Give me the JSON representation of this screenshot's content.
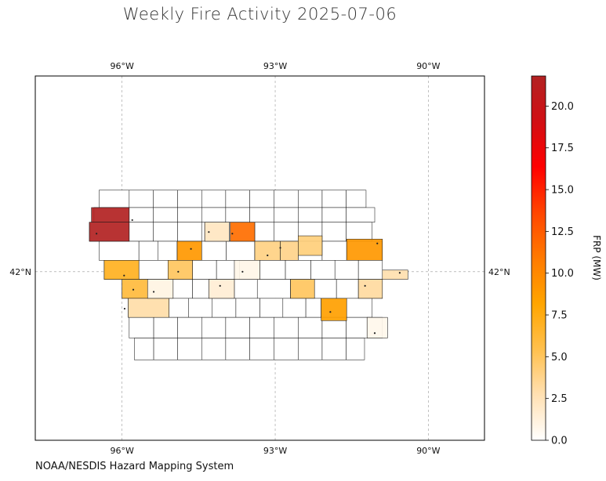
{
  "title": "Weekly Fire Activity 2025-07-06",
  "credit": "NOAA/NESDIS Hazard Mapping System",
  "map": {
    "extent": {
      "lon_min": -97.7,
      "lon_max": -88.9,
      "lat_min": 38.9,
      "lat_max": 45.6
    },
    "lon_ticks": [
      {
        "lon": -96,
        "label": "96°W"
      },
      {
        "lon": -93,
        "label": "93°W"
      },
      {
        "lon": -90,
        "label": "90°W"
      }
    ],
    "lat_ticks": [
      {
        "lat": 42,
        "label": "42°N"
      }
    ],
    "gridlines": true
  },
  "colorbar": {
    "label": "FRP (MW)",
    "min": 0,
    "max": 21.8,
    "ticks": [
      "0.0",
      "2.5",
      "5.0",
      "7.5",
      "10.0",
      "12.5",
      "15.0",
      "17.5",
      "20.0"
    ],
    "colors": [
      "#ffffff",
      "#ffe0b2",
      "#ffc04d",
      "#ffa500",
      "#ff7a00",
      "#ff4500",
      "#ff0000",
      "#d10f14",
      "#b22222"
    ]
  },
  "counties": [
    {
      "lon_min": -96.6,
      "lon_max": -95.86,
      "lat_min": 42.91,
      "lat_max": 43.18,
      "frp": 21.8
    },
    {
      "lon_min": -96.64,
      "lon_max": -95.86,
      "lat_min": 42.56,
      "lat_max": 42.91,
      "frp": 21.8
    },
    {
      "lon_min": -93.88,
      "lon_max": -93.4,
      "lat_min": 42.56,
      "lat_max": 42.91,
      "frp": 11.5
    },
    {
      "lon_min": -94.92,
      "lon_max": -94.44,
      "lat_min": 42.21,
      "lat_max": 42.56,
      "frp": 9.0
    },
    {
      "lon_min": -91.6,
      "lon_max": -90.9,
      "lat_min": 42.21,
      "lat_max": 42.6,
      "frp": 9.0
    },
    {
      "lon_min": -92.1,
      "lon_max": -91.6,
      "lat_min": 41.1,
      "lat_max": 41.51,
      "frp": 8.5
    },
    {
      "lon_min": -96.35,
      "lon_max": -95.67,
      "lat_min": 41.86,
      "lat_max": 42.21,
      "frp": 7.0
    },
    {
      "lon_min": -96.0,
      "lon_max": -95.5,
      "lat_min": 41.51,
      "lat_max": 41.86,
      "frp": 6.0
    },
    {
      "lon_min": -95.1,
      "lon_max": -94.62,
      "lat_min": 41.86,
      "lat_max": 42.21,
      "frp": 5.0
    },
    {
      "lon_min": -92.7,
      "lon_max": -92.23,
      "lat_min": 41.51,
      "lat_max": 41.86,
      "frp": 5.0
    },
    {
      "lon_min": -93.4,
      "lon_max": -92.9,
      "lat_min": 42.21,
      "lat_max": 42.56,
      "frp": 4.0
    },
    {
      "lon_min": -92.9,
      "lon_max": -92.55,
      "lat_min": 42.21,
      "lat_max": 42.56,
      "frp": 3.8
    },
    {
      "lon_min": -92.55,
      "lon_max": -92.08,
      "lat_min": 42.3,
      "lat_max": 42.66,
      "frp": 4.2
    },
    {
      "lon_min": -95.88,
      "lon_max": -95.08,
      "lat_min": 41.16,
      "lat_max": 41.51,
      "frp": 3.0
    },
    {
      "lon_min": -91.37,
      "lon_max": -90.9,
      "lat_min": 41.51,
      "lat_max": 41.86,
      "frp": 3.2
    },
    {
      "lon_min": -90.9,
      "lon_max": -90.4,
      "lat_min": 41.86,
      "lat_max": 42.03,
      "frp": 2.8
    },
    {
      "lon_min": -94.38,
      "lon_max": -93.9,
      "lat_min": 42.56,
      "lat_max": 42.91,
      "frp": 2.2
    },
    {
      "lon_min": -94.3,
      "lon_max": -93.8,
      "lat_min": 41.51,
      "lat_max": 41.86,
      "frp": 1.5
    },
    {
      "lon_min": -95.5,
      "lon_max": -95.0,
      "lat_min": 41.51,
      "lat_max": 41.86,
      "frp": 1.0
    },
    {
      "lon_min": -93.8,
      "lon_max": -93.3,
      "lat_min": 41.86,
      "lat_max": 42.21,
      "frp": 0.8
    },
    {
      "lon_min": -91.2,
      "lon_max": -90.8,
      "lat_min": 40.78,
      "lat_max": 41.16,
      "frp": 0.7
    }
  ],
  "fire_points": [
    {
      "lon": -96.5,
      "lat": 42.7
    },
    {
      "lon": -95.8,
      "lat": 42.95
    },
    {
      "lon": -94.3,
      "lat": 42.73
    },
    {
      "lon": -93.84,
      "lat": 42.7
    },
    {
      "lon": -94.65,
      "lat": 42.42
    },
    {
      "lon": -93.15,
      "lat": 42.3
    },
    {
      "lon": -92.9,
      "lat": 42.44
    },
    {
      "lon": -91.0,
      "lat": 42.52
    },
    {
      "lon": -94.9,
      "lat": 42.0
    },
    {
      "lon": -93.64,
      "lat": 42.0
    },
    {
      "lon": -90.56,
      "lat": 41.98
    },
    {
      "lon": -95.96,
      "lat": 41.93
    },
    {
      "lon": -95.78,
      "lat": 41.67
    },
    {
      "lon": -95.38,
      "lat": 41.63
    },
    {
      "lon": -94.08,
      "lat": 41.74
    },
    {
      "lon": -91.24,
      "lat": 41.74
    },
    {
      "lon": -95.95,
      "lat": 41.32
    },
    {
      "lon": -91.92,
      "lat": 41.26
    },
    {
      "lon": -91.05,
      "lat": 40.87
    }
  ]
}
